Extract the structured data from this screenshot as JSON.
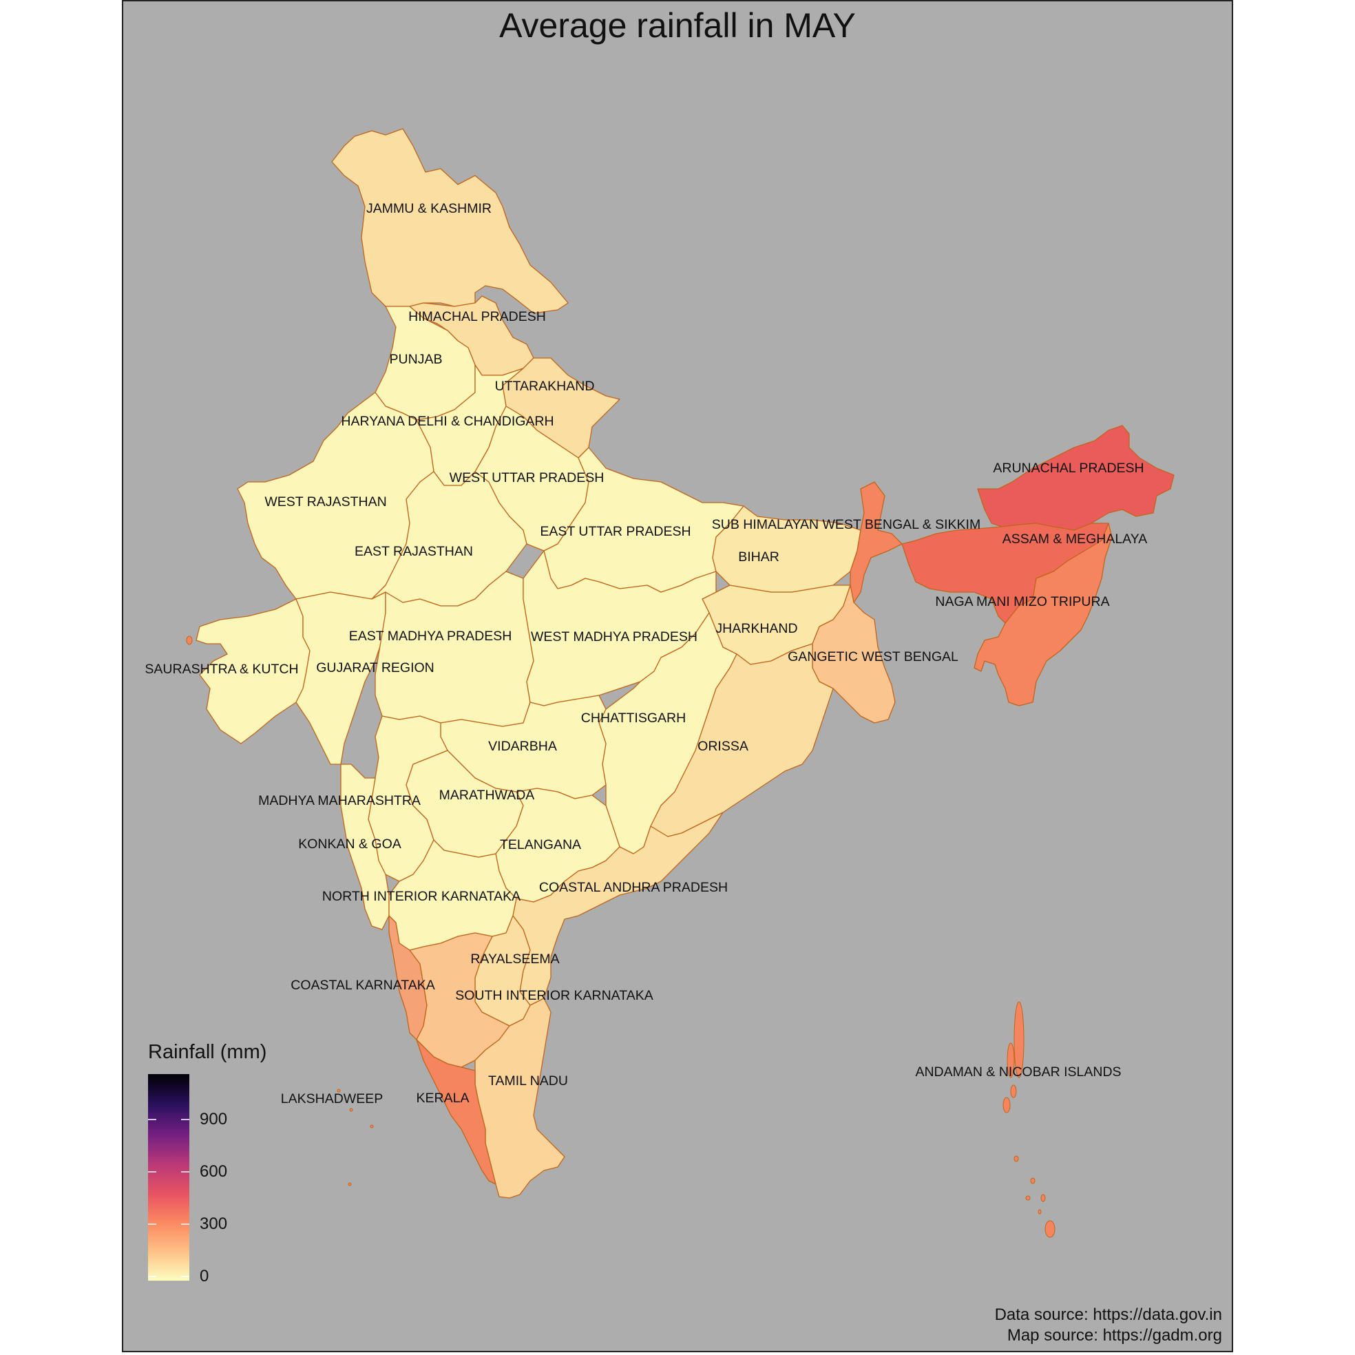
{
  "title": "Average rainfall in MAY",
  "legend": {
    "title": "Rainfall (mm)",
    "ticks": [
      "900",
      "600",
      "300",
      "0"
    ],
    "colormap": "magma (reversed)",
    "colors": [
      "#fcfdbf",
      "#fec287",
      "#fc8961",
      "#e85362",
      "#b73779",
      "#721f81",
      "#2c115f",
      "#000004"
    ]
  },
  "sources": {
    "data": "Data source: https://data.gov.in",
    "map": "Map source: https://gadm.org"
  },
  "colors": {
    "background": "#adadad",
    "border": "#c0651b",
    "pale": "#fcf6b8",
    "light_tan": "#fbdfa2",
    "tan": "#fbd49a",
    "peach": "#fbc590",
    "salmon": "#f6a277",
    "orange": "#f4855e",
    "red_orange": "#ef6b58",
    "red": "#ea5c5a"
  },
  "regions": [
    {
      "name": "JAMMU & KASHMIR"
    },
    {
      "name": "HIMACHAL PRADESH"
    },
    {
      "name": "PUNJAB"
    },
    {
      "name": "UTTARAKHAND"
    },
    {
      "name": "HARYANA DELHI & CHANDIGARH"
    },
    {
      "name": "WEST UTTAR PRADESH"
    },
    {
      "name": "WEST RAJASTHAN"
    },
    {
      "name": "EAST UTTAR PRADESH"
    },
    {
      "name": "SUB HIMALAYAN WEST BENGAL & SIKKIM"
    },
    {
      "name": "EAST RAJASTHAN"
    },
    {
      "name": "BIHAR"
    },
    {
      "name": "ARUNACHAL PRADESH"
    },
    {
      "name": "ASSAM & MEGHALAYA"
    },
    {
      "name": "NAGA MANI MIZO TRIPURA"
    },
    {
      "name": "JHARKHAND"
    },
    {
      "name": "EAST MADHYA PRADESH"
    },
    {
      "name": "WEST MADHYA PRADESH"
    },
    {
      "name": "GANGETIC WEST BENGAL"
    },
    {
      "name": "SAURASHTRA & KUTCH"
    },
    {
      "name": "GUJARAT REGION"
    },
    {
      "name": "CHHATTISGARH"
    },
    {
      "name": "VIDARBHA"
    },
    {
      "name": "ORISSA"
    },
    {
      "name": "MADHYA MAHARASHTRA"
    },
    {
      "name": "MARATHWADA"
    },
    {
      "name": "KONKAN & GOA"
    },
    {
      "name": "TELANGANA"
    },
    {
      "name": "COASTAL ANDHRA PRADESH"
    },
    {
      "name": "NORTH INTERIOR KARNATAKA"
    },
    {
      "name": "RAYALSEEMA"
    },
    {
      "name": "COASTAL KARNATAKA"
    },
    {
      "name": "SOUTH INTERIOR KARNATAKA"
    },
    {
      "name": "TAMIL NADU"
    },
    {
      "name": "KERALA"
    },
    {
      "name": "LAKSHADWEEP"
    },
    {
      "name": "ANDAMAN & NICOBAR ISLANDS"
    }
  ]
}
